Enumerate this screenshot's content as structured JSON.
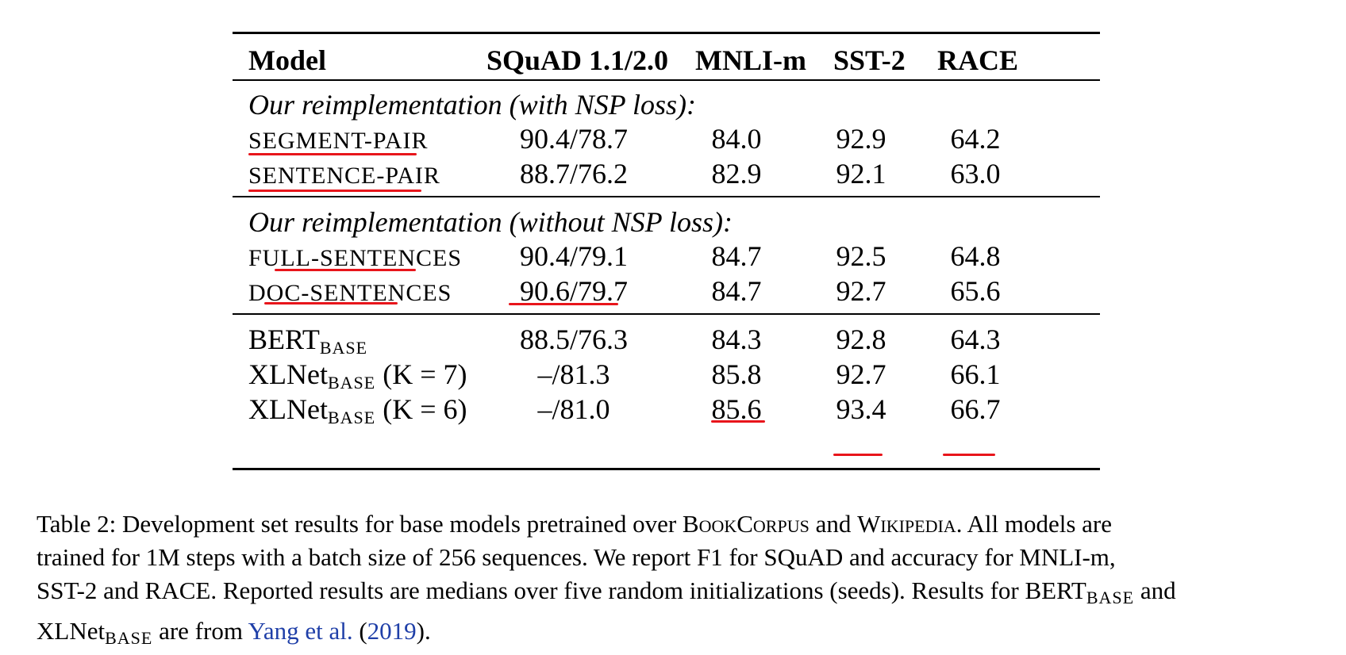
{
  "table": {
    "headers": [
      "Model",
      "SQuAD 1.1/2.0",
      "MNLI-m",
      "SST-2",
      "RACE"
    ],
    "groups": [
      {
        "title": "Our reimplementation (with NSP loss):",
        "rows": [
          {
            "model": "SEGMENT-PAIR",
            "squad": "90.4/78.7",
            "mnli": "84.0",
            "sst2": "92.9",
            "race": "64.2"
          },
          {
            "model": "SENTENCE-PAIR",
            "squad": "88.7/76.2",
            "mnli": "82.9",
            "sst2": "92.1",
            "race": "63.0"
          }
        ]
      },
      {
        "title": "Our reimplementation (without NSP loss):",
        "rows": [
          {
            "model": "FULL-SENTENCES",
            "squad": "90.4/79.1",
            "mnli": "84.7",
            "sst2": "92.5",
            "race": "64.8"
          },
          {
            "model": "DOC-SENTENCES",
            "squad": "90.6/79.7",
            "mnli": "84.7",
            "sst2": "92.7",
            "race": "65.6"
          }
        ]
      },
      {
        "title": "",
        "rows": [
          {
            "model": "BERT",
            "model_sub": "BASE",
            "model_suffix": "",
            "squad": "88.5/76.3",
            "mnli": "84.3",
            "sst2": "92.8",
            "race": "64.3"
          },
          {
            "model": "XLNet",
            "model_sub": "BASE",
            "model_suffix": " (K = 7)",
            "squad": "–/81.3",
            "mnli": "85.8",
            "sst2": "92.7",
            "race": "66.1"
          },
          {
            "model": "XLNet",
            "model_sub": "BASE",
            "model_suffix": " (K = 6)",
            "squad": "–/81.0",
            "mnli": "85.6",
            "sst2": "93.4",
            "race": "66.7"
          }
        ]
      }
    ]
  },
  "annotation_color": "#e8151b",
  "caption": {
    "l1a": "Table 2: Development set results for base models pretrained over ",
    "l1b": "BookCorpus",
    "l1c": " and ",
    "l1d": "Wikipedia",
    "l1e": ". All models are",
    "l2": "trained for 1M steps with a batch size of 256 sequences.  We report F1 for SQuAD and accuracy for MNLI-m,",
    "l3a": "SST-2 and RACE. Reported results are medians over five random initializations (seeds). Results for BERT",
    "l3sub": "BASE",
    "l3b": " and",
    "l4a": "XLNet",
    "l4sub": "BASE",
    "l4b": " are from ",
    "cite_authors": "Yang et al.",
    "cite_open": " (",
    "cite_year": "2019",
    "cite_close": ")",
    "l4end": "."
  }
}
